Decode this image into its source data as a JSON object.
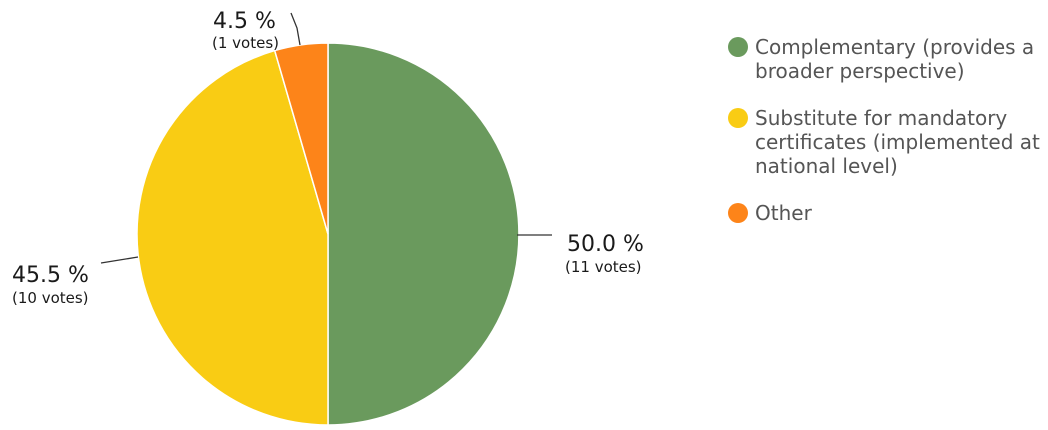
{
  "chart_data": {
    "type": "pie",
    "title": "",
    "legend_position": "right",
    "slices": [
      {
        "name": "Complementary (provides a broader perspective)",
        "legend_lines": [
          "Complementary (provides a",
          "broader perspective)"
        ],
        "percent": 50.0,
        "percent_label": "50.0 %",
        "votes": 11,
        "votes_label": "(11 votes)",
        "color": "#6a9a5d"
      },
      {
        "name": "Substitute for mandatory certificates (implemented at national level)",
        "legend_lines": [
          "Substitute for mandatory",
          "certificates (implemented at",
          "national level)"
        ],
        "percent": 45.5,
        "percent_label": "45.5 %",
        "votes": 10,
        "votes_label": "(10 votes)",
        "color": "#f9cc14"
      },
      {
        "name": "Other",
        "legend_lines": [
          "Other"
        ],
        "percent": 4.5,
        "percent_label": "4.5 %",
        "votes": 1,
        "votes_label": "(1 votes)",
        "color": "#fd8419"
      }
    ]
  }
}
